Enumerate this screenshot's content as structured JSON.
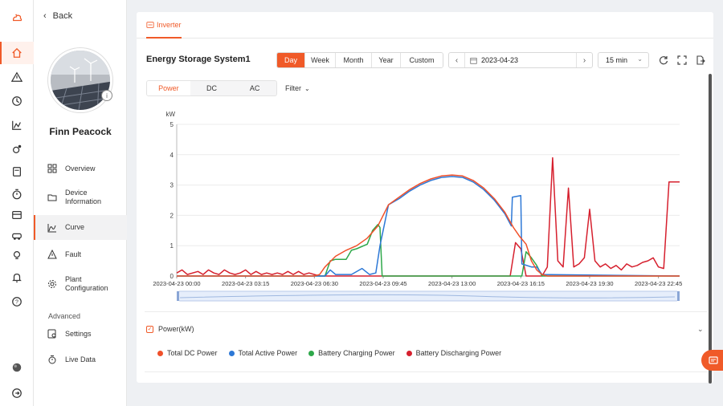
{
  "nav": {
    "back_label": "Back",
    "plant_name": "Finn Peacock",
    "avatar_badge": "i",
    "menu": [
      {
        "label": "Overview",
        "icon": "grid-icon"
      },
      {
        "label": "Device\nInformation",
        "icon": "folder-icon"
      },
      {
        "label": "Curve",
        "icon": "curve-icon",
        "active": true
      },
      {
        "label": "Fault",
        "icon": "warning-icon"
      },
      {
        "label": "Plant\nConfiguration",
        "icon": "gear-icon"
      }
    ],
    "advanced_label": "Advanced",
    "advanced_menu": [
      {
        "label": "Settings",
        "icon": "settings-icon"
      },
      {
        "label": "Live Data",
        "icon": "timer-icon"
      }
    ]
  },
  "header": {
    "tab_label": "Inverter",
    "system_title": "Energy Storage System1"
  },
  "period": {
    "options": [
      "Day",
      "Week",
      "Month",
      "Year",
      "Custom"
    ],
    "selected": "Day"
  },
  "date": {
    "value": "2023-04-23"
  },
  "interval": {
    "value": "15 min"
  },
  "view": {
    "options": [
      "Power",
      "DC",
      "AC"
    ],
    "selected": "Power",
    "filter_label": "Filter"
  },
  "section": {
    "label": "Power(kW)"
  },
  "colors": {
    "accent": "#f05a28",
    "total_dc": "#f0502a",
    "total_active": "#2d78d6",
    "battery_charging": "#2ea84a",
    "battery_discharging": "#d6202e"
  },
  "chart_data": {
    "type": "line",
    "ylabel": "kW",
    "ylim": [
      0,
      5
    ],
    "yticks": [
      0,
      1,
      2,
      3,
      4,
      5
    ],
    "xtick_labels": [
      "2023-04-23 00:00",
      "2023-04-23 03:15",
      "2023-04-23 06:30",
      "2023-04-23 09:45",
      "2023-04-23 13:00",
      "2023-04-23 16:15",
      "2023-04-23 19:30",
      "2023-04-23 22:45"
    ],
    "x_unit_hours": true,
    "xlim": [
      0,
      23.75
    ],
    "legend_position": "bottom",
    "series": [
      {
        "name": "Total DC Power",
        "color": "#f0502a",
        "points": [
          [
            0,
            0
          ],
          [
            6.5,
            0
          ],
          [
            6.75,
            0.05
          ],
          [
            7,
            0.3
          ],
          [
            7.5,
            0.65
          ],
          [
            8,
            0.85
          ],
          [
            8.5,
            1.0
          ],
          [
            9,
            1.25
          ],
          [
            9.5,
            1.65
          ],
          [
            10,
            2.35
          ],
          [
            10.5,
            2.6
          ],
          [
            11,
            2.85
          ],
          [
            11.5,
            3.05
          ],
          [
            12,
            3.2
          ],
          [
            12.5,
            3.3
          ],
          [
            13,
            3.33
          ],
          [
            13.5,
            3.3
          ],
          [
            14,
            3.15
          ],
          [
            14.5,
            2.9
          ],
          [
            15,
            2.55
          ],
          [
            15.5,
            2.1
          ],
          [
            15.9,
            1.6
          ],
          [
            16.2,
            1.3
          ],
          [
            16.5,
            1.05
          ],
          [
            16.75,
            0.5
          ],
          [
            17,
            0.2
          ],
          [
            17.25,
            0.05
          ],
          [
            17.5,
            0
          ],
          [
            23.75,
            0
          ]
        ]
      },
      {
        "name": "Total Active Power",
        "color": "#2d78d6",
        "points": [
          [
            0,
            0
          ],
          [
            7,
            0
          ],
          [
            7.25,
            0.2
          ],
          [
            7.5,
            0.05
          ],
          [
            8.25,
            0.05
          ],
          [
            8.75,
            0.25
          ],
          [
            9.1,
            0.05
          ],
          [
            9.4,
            0.1
          ],
          [
            9.6,
            1.0
          ],
          [
            10,
            2.35
          ],
          [
            10.5,
            2.55
          ],
          [
            11,
            2.8
          ],
          [
            11.5,
            3.0
          ],
          [
            12,
            3.15
          ],
          [
            12.5,
            3.25
          ],
          [
            13,
            3.28
          ],
          [
            13.5,
            3.25
          ],
          [
            14,
            3.1
          ],
          [
            14.5,
            2.85
          ],
          [
            15,
            2.5
          ],
          [
            15.5,
            2.05
          ],
          [
            15.8,
            1.65
          ],
          [
            15.85,
            2.6
          ],
          [
            16.25,
            2.65
          ],
          [
            16.3,
            0.4
          ],
          [
            16.75,
            0.3
          ],
          [
            17,
            0.3
          ],
          [
            17.25,
            0.05
          ],
          [
            23.75,
            0
          ]
        ]
      },
      {
        "name": "Battery Charging Power",
        "color": "#2ea84a",
        "points": [
          [
            0,
            0
          ],
          [
            7,
            0
          ],
          [
            7.25,
            0.5
          ],
          [
            7.5,
            0.55
          ],
          [
            8,
            0.55
          ],
          [
            8.25,
            0.85
          ],
          [
            8.5,
            0.9
          ],
          [
            9,
            1.05
          ],
          [
            9.25,
            1.5
          ],
          [
            9.5,
            1.7
          ],
          [
            9.6,
            1.6
          ],
          [
            9.7,
            0
          ],
          [
            16.3,
            0
          ],
          [
            16.5,
            0.8
          ],
          [
            16.75,
            0.6
          ],
          [
            17,
            0.35
          ],
          [
            17.25,
            0
          ],
          [
            23.75,
            0
          ]
        ]
      },
      {
        "name": "Battery Discharging Power",
        "color": "#d6202e",
        "points": [
          [
            0,
            0.1
          ],
          [
            0.25,
            0.2
          ],
          [
            0.5,
            0.05
          ],
          [
            1,
            0.15
          ],
          [
            1.25,
            0.05
          ],
          [
            1.5,
            0.2
          ],
          [
            1.75,
            0.1
          ],
          [
            2,
            0.05
          ],
          [
            2.25,
            0.2
          ],
          [
            2.5,
            0.1
          ],
          [
            2.75,
            0.05
          ],
          [
            3,
            0.1
          ],
          [
            3.25,
            0.2
          ],
          [
            3.5,
            0.05
          ],
          [
            3.75,
            0.15
          ],
          [
            4,
            0.05
          ],
          [
            4.25,
            0.1
          ],
          [
            4.5,
            0.05
          ],
          [
            4.75,
            0.1
          ],
          [
            5,
            0.05
          ],
          [
            5.25,
            0.15
          ],
          [
            5.5,
            0.05
          ],
          [
            5.75,
            0.15
          ],
          [
            6,
            0.05
          ],
          [
            6.25,
            0.1
          ],
          [
            6.5,
            0.05
          ],
          [
            6.75,
            0
          ],
          [
            15.75,
            0
          ],
          [
            16,
            1.1
          ],
          [
            16.25,
            0.9
          ],
          [
            16.5,
            0
          ],
          [
            17.25,
            0
          ],
          [
            17.5,
            0.3
          ],
          [
            17.75,
            3.9
          ],
          [
            18,
            0.5
          ],
          [
            18.25,
            0.3
          ],
          [
            18.5,
            2.9
          ],
          [
            18.75,
            0.3
          ],
          [
            19,
            0.4
          ],
          [
            19.25,
            0.6
          ],
          [
            19.5,
            2.2
          ],
          [
            19.75,
            0.5
          ],
          [
            20,
            0.3
          ],
          [
            20.25,
            0.4
          ],
          [
            20.5,
            0.25
          ],
          [
            20.75,
            0.35
          ],
          [
            21,
            0.2
          ],
          [
            21.25,
            0.4
          ],
          [
            21.5,
            0.3
          ],
          [
            21.75,
            0.35
          ],
          [
            22,
            0.45
          ],
          [
            22.25,
            0.5
          ],
          [
            22.5,
            0.6
          ],
          [
            22.75,
            0.3
          ],
          [
            23,
            0.25
          ],
          [
            23.25,
            3.1
          ],
          [
            23.75,
            3.1
          ]
        ]
      }
    ]
  }
}
